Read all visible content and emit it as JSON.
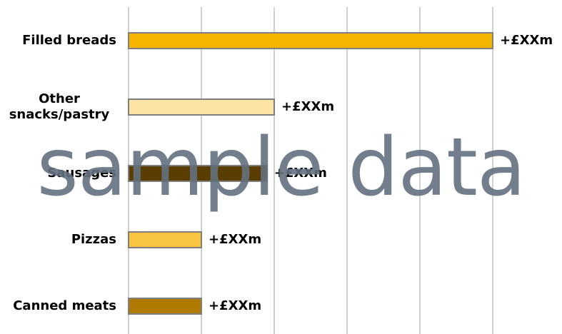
{
  "chart_data": {
    "type": "barh",
    "categories": [
      "Filled breads",
      "Other snacks/pastry",
      "Sausages",
      "Pizzas",
      "Canned meats"
    ],
    "values": [
      5,
      2,
      1.9,
      1,
      1
    ],
    "value_labels": [
      "+£XXm",
      "+£XXm",
      "+£XXm",
      "+£XXm",
      "+£XXm"
    ],
    "colors": [
      "#f5b400",
      "#fde4a4",
      "#5a3d00",
      "#f9c440",
      "#b07a00"
    ],
    "xlim": [
      0,
      5
    ],
    "xticks": [
      0,
      1,
      2,
      3,
      4,
      5
    ],
    "grid": true,
    "watermark": "sample data"
  }
}
